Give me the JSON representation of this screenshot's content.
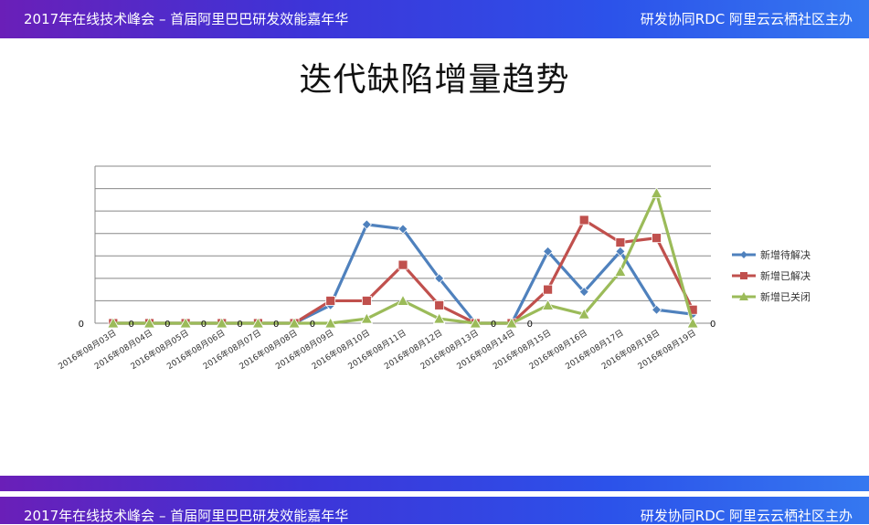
{
  "header": {
    "event": "2017年在线技术峰会 – 首届阿里巴巴研发效能嘉年华",
    "host": "研发协同RDC 阿里云云栖社区主办"
  },
  "slide": {
    "title": "迭代缺陷增量趋势"
  },
  "chart_data": {
    "type": "line",
    "categories": [
      "2016年08月03日",
      "2016年08月04日",
      "2016年08月05日",
      "2016年08月06日",
      "2016年08月07日",
      "2016年08月08日",
      "2016年08月09日",
      "2016年08月10日",
      "2016年08月11日",
      "2016年08月12日",
      "2016年08月13日",
      "2016年08月14日",
      "2016年08月15日",
      "2016年08月16日",
      "2016年08月17日",
      "2016年08月18日",
      "2016年08月19日"
    ],
    "ylim": [
      0,
      7
    ],
    "grid": true,
    "legend": "right",
    "series": [
      {
        "name": "新增待解决",
        "color": "#4f81bd",
        "marker": "diamond",
        "values": [
          0,
          0,
          0,
          0,
          0,
          0,
          0.8,
          4.4,
          4.2,
          2,
          0,
          0,
          3.2,
          1.4,
          3.2,
          0.6,
          0.4
        ]
      },
      {
        "name": "新增已解决",
        "color": "#c0504d",
        "marker": "square",
        "values": [
          0,
          0,
          0,
          0,
          0,
          0,
          1,
          1,
          2.6,
          0.8,
          0,
          0,
          1.5,
          4.6,
          3.6,
          3.8,
          0.6
        ]
      },
      {
        "name": "新增已关闭",
        "color": "#9bbb59",
        "marker": "triangle",
        "values": [
          0,
          0,
          0,
          0,
          0,
          0,
          0,
          0.2,
          1,
          0.2,
          0,
          0,
          0.8,
          0.4,
          2.3,
          5.8,
          0
        ]
      }
    ],
    "data_labels": [
      {
        "index": 0,
        "text": "0"
      },
      {
        "index": 1,
        "text": "0"
      },
      {
        "index": 2,
        "text": "0"
      },
      {
        "index": 3,
        "text": "0"
      },
      {
        "index": 4,
        "text": "0"
      },
      {
        "index": 5,
        "text": "0"
      },
      {
        "index": 10,
        "text": "0"
      },
      {
        "index": 11,
        "text": "0"
      }
    ],
    "y_tick_labels": [
      "0"
    ],
    "right_label": "0"
  }
}
